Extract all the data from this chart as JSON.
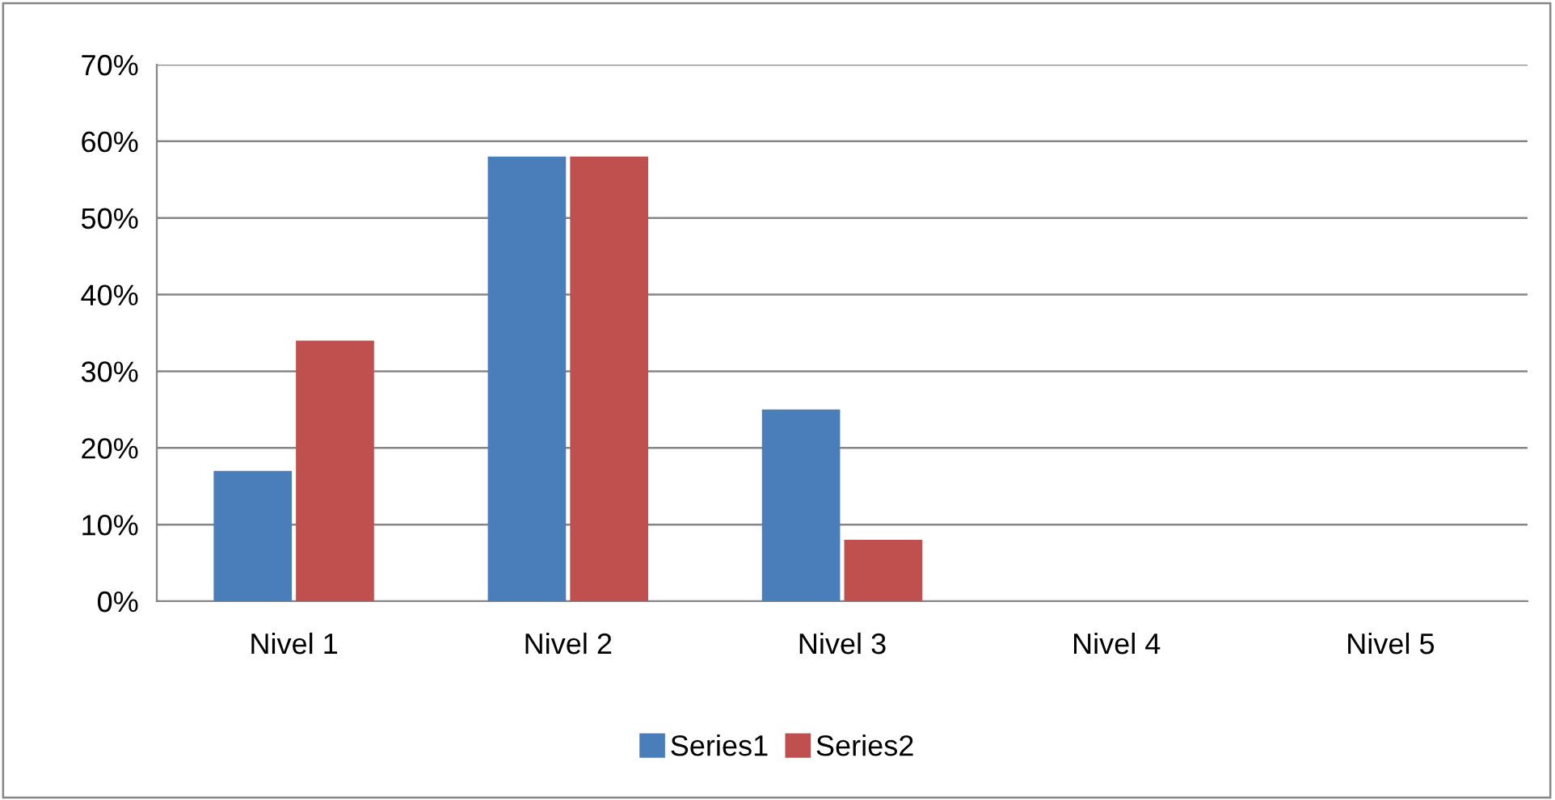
{
  "chart_data": {
    "type": "bar",
    "categories": [
      "Nivel 1",
      "Nivel 2",
      "Nivel 3",
      "Nivel 4",
      "Nivel 5"
    ],
    "series": [
      {
        "name": "Series1",
        "color": "#4a7ebb",
        "values": [
          17,
          58,
          25,
          0,
          0
        ]
      },
      {
        "name": "Series2",
        "color": "#c0504d",
        "values": [
          34,
          58,
          8,
          0,
          0
        ]
      }
    ],
    "ylim": [
      0,
      70
    ],
    "yticks": [
      {
        "value": 0,
        "label": "0%"
      },
      {
        "value": 10,
        "label": "10%"
      },
      {
        "value": 20,
        "label": "20%"
      },
      {
        "value": 30,
        "label": "30%"
      },
      {
        "value": 40,
        "label": "40%"
      },
      {
        "value": 50,
        "label": "50%"
      },
      {
        "value": 60,
        "label": "60%"
      },
      {
        "value": 70,
        "label": "70%"
      }
    ],
    "grid": "y",
    "legend": "bottom"
  }
}
